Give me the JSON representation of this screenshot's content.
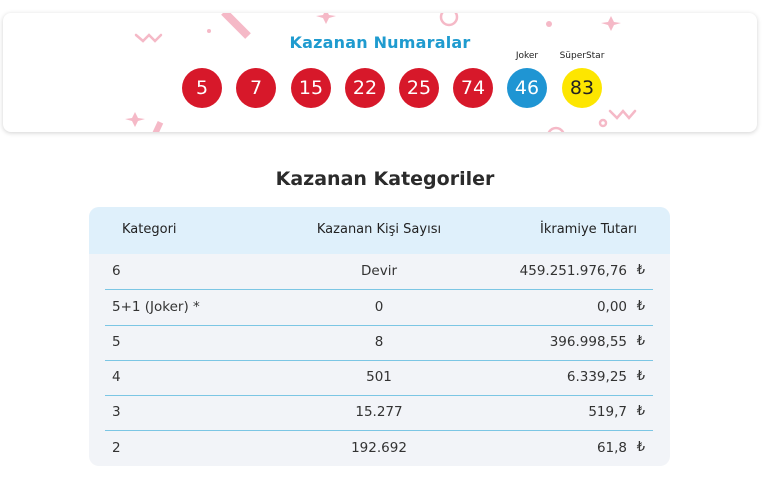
{
  "numbers_card": {
    "title": "Kazanan Numaralar",
    "main_numbers": [
      "5",
      "7",
      "15",
      "22",
      "25",
      "74"
    ],
    "joker_label": "Joker",
    "joker_number": "46",
    "superstar_label": "SüperStar",
    "superstar_number": "83",
    "colors": {
      "main_ball": "#d7182a",
      "joker_ball": "#1f95d3",
      "superstar_ball": "#fde600",
      "title": "#1f9bcf"
    }
  },
  "categories": {
    "title": "Kazanan Kategoriler",
    "headers": {
      "category": "Kategori",
      "winners": "Kazanan Kişi Sayısı",
      "prize": "İkramiye Tutarı"
    },
    "currency_symbol": "₺",
    "rows": [
      {
        "category": "6",
        "winners": "Devir",
        "prize": "459.251.976,76"
      },
      {
        "category": "5+1 (Joker) *",
        "winners": "0",
        "prize": "0,00"
      },
      {
        "category": "5",
        "winners": "8",
        "prize": "396.998,55"
      },
      {
        "category": "4",
        "winners": "501",
        "prize": "6.339,25"
      },
      {
        "category": "3",
        "winners": "15.277",
        "prize": "519,7"
      },
      {
        "category": "2",
        "winners": "192.692",
        "prize": "61,8"
      }
    ]
  }
}
